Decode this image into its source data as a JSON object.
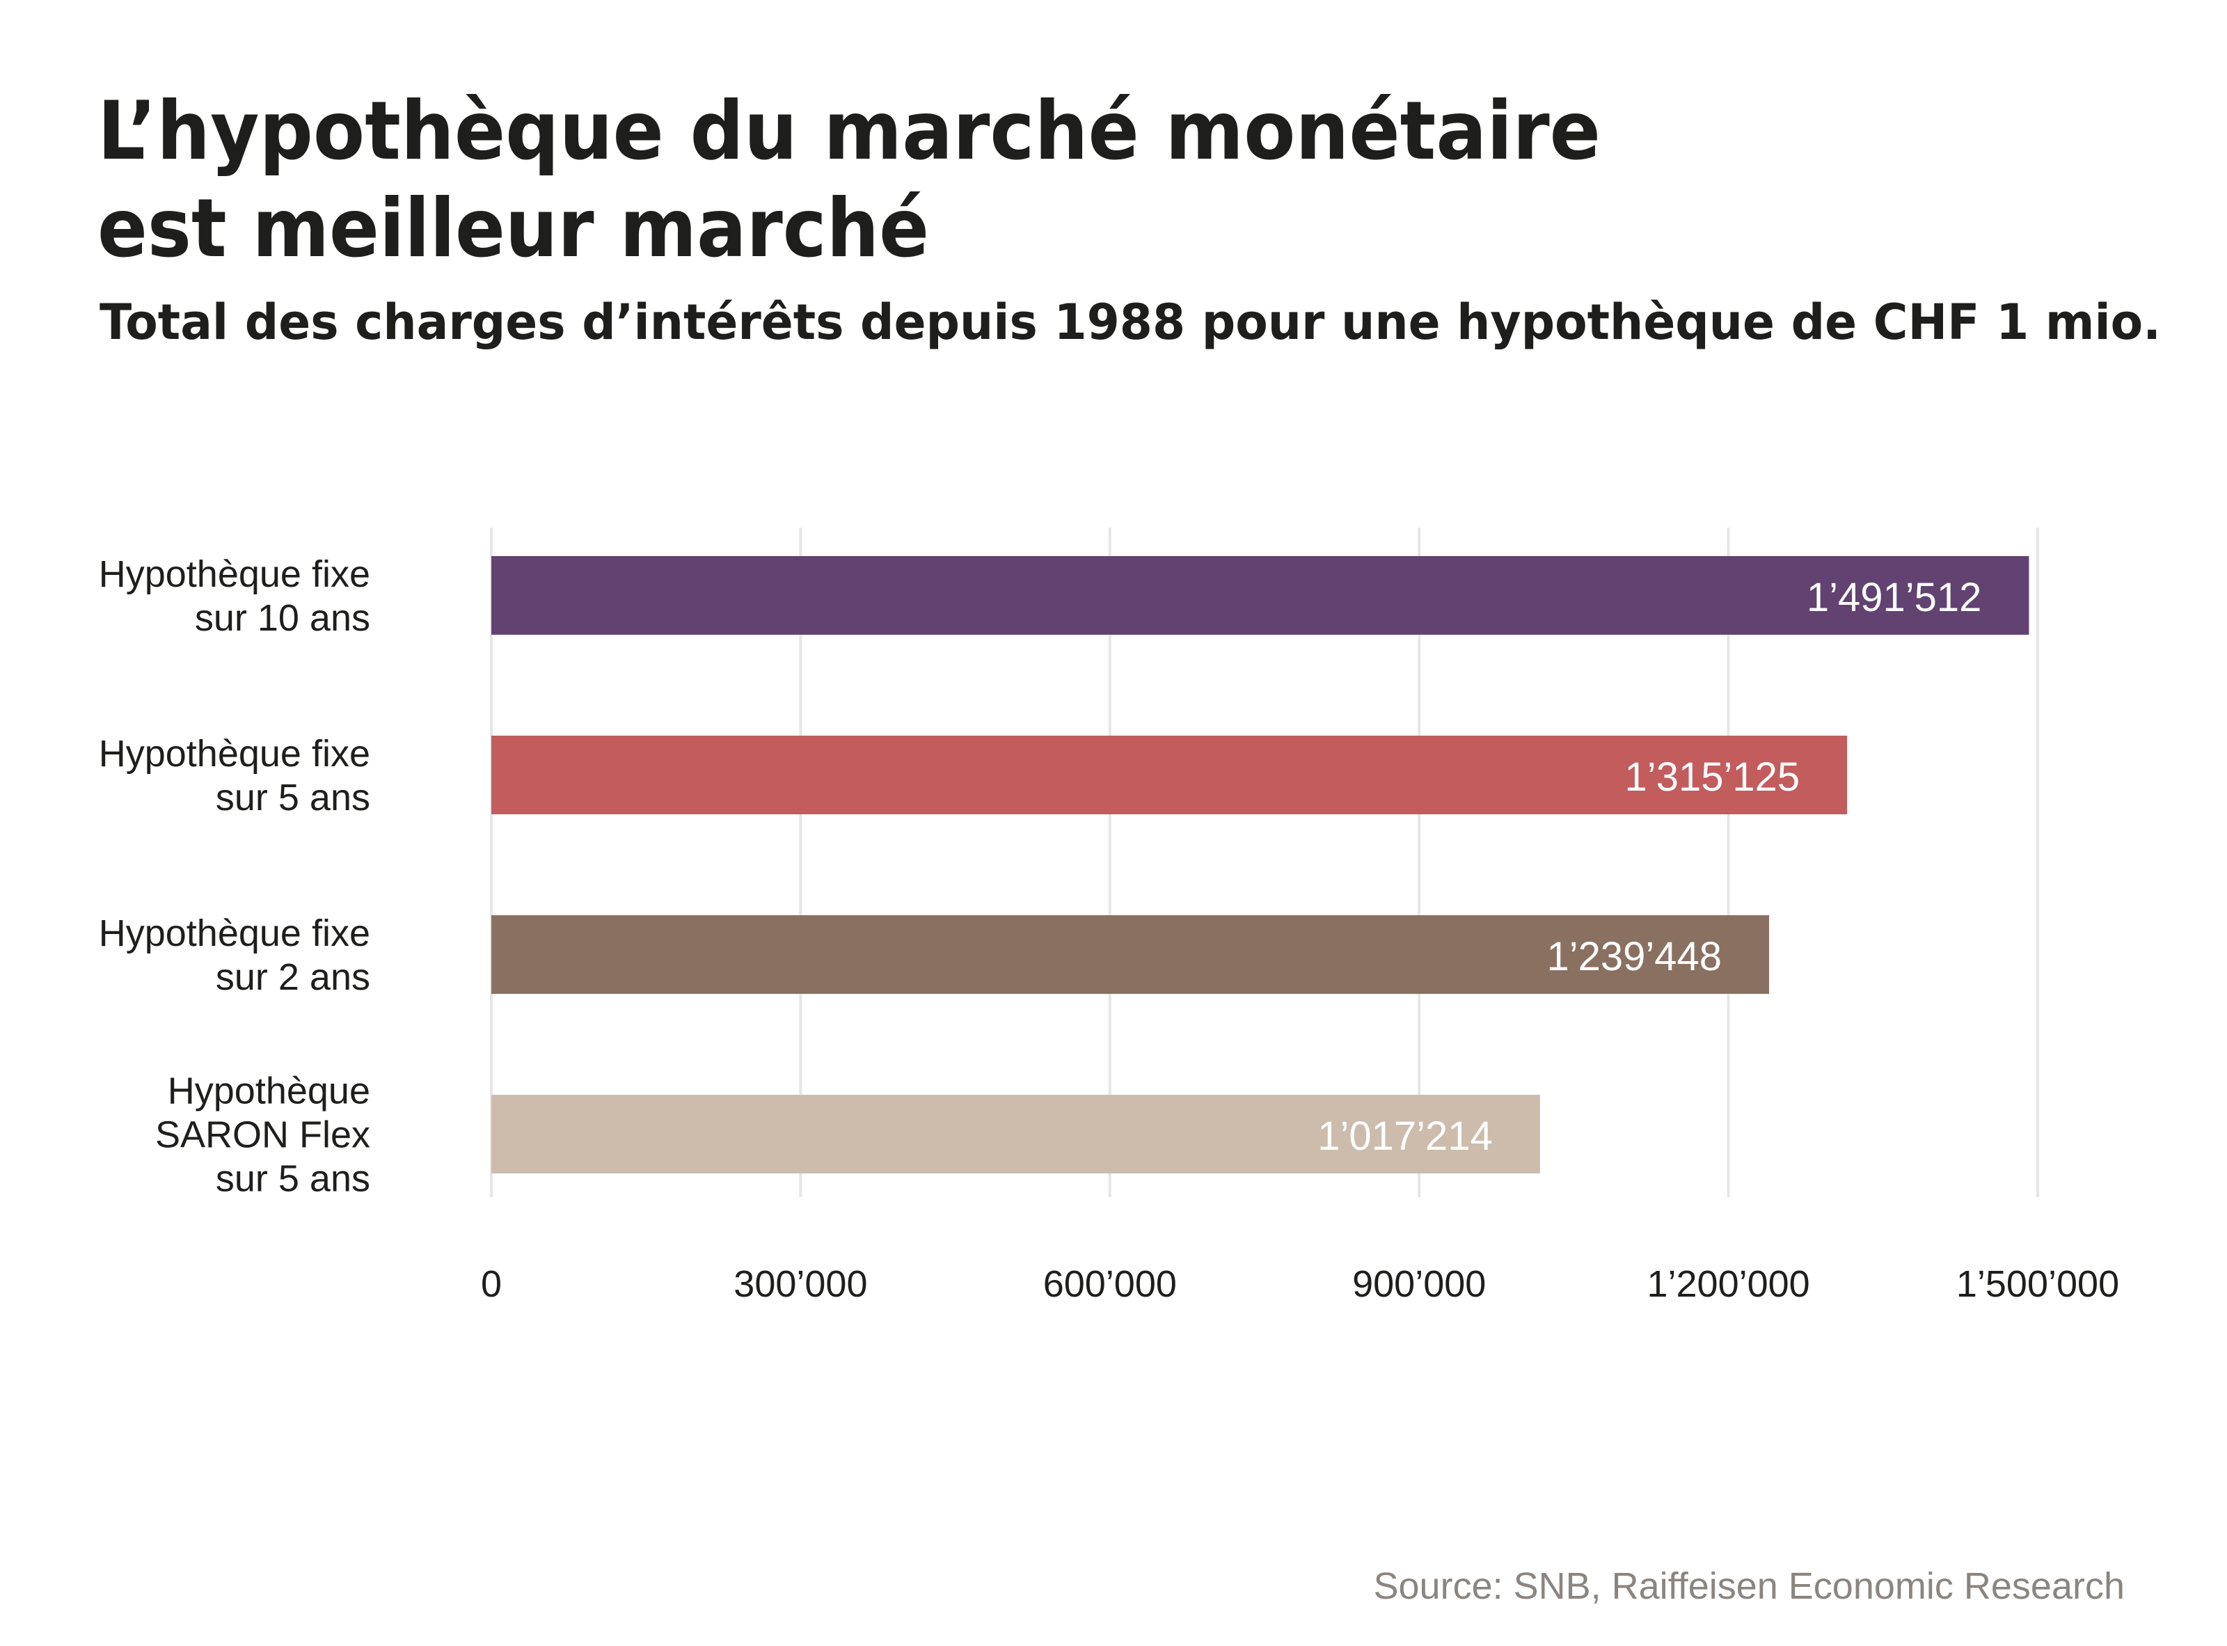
{
  "chart_data": {
    "type": "bar",
    "orientation": "horizontal",
    "title": "L’hypothèque du marché monétaire est meilleur marché",
    "title_lines": [
      "L’hypothèque du marché monétaire",
      "est meilleur marché"
    ],
    "subtitle": "Total des charges d’intérêts depuis 1988 pour une hypothèque de CHF 1 mio.",
    "categories": [
      [
        "Hypothèque fixe",
        "sur 10 ans"
      ],
      [
        "Hypothèque fixe",
        "sur 5 ans"
      ],
      [
        "Hypothèque fixe",
        "sur 2 ans"
      ],
      [
        "Hypothèque",
        "SARON Flex",
        "sur 5 ans"
      ]
    ],
    "values": [
      1491512,
      1315125,
      1239448,
      1017214
    ],
    "value_labels": [
      "1’491’512",
      "1’315’125",
      "1’239’448",
      "1’017’214"
    ],
    "colors": [
      "#614271",
      "#c25c5d",
      "#8a7061",
      "#cdbcab"
    ],
    "xlim": [
      0,
      1500000
    ],
    "xticks": [
      0,
      300000,
      600000,
      900000,
      1200000,
      1500000
    ],
    "xtick_labels": [
      "0",
      "300’000",
      "600’000",
      "900’000",
      "1’200’000",
      "1’500’000"
    ],
    "xlabel": "",
    "ylabel": "",
    "grid": true,
    "legend": "none",
    "source": "Source: SNB, Raiffeisen Economic Research"
  }
}
